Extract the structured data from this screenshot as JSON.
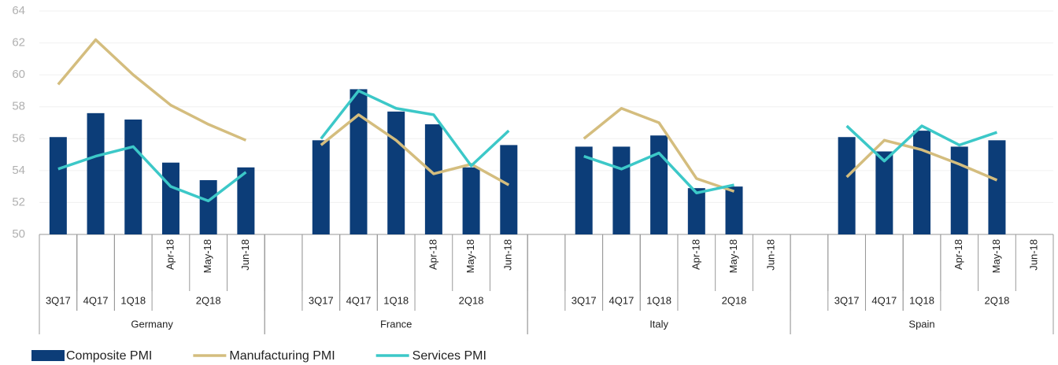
{
  "chart_data": {
    "type": "bar_line",
    "categories": [
      "3Q17",
      "4Q17",
      "1Q18",
      "Apr-18",
      "May-18",
      "Jun-18",
      null,
      "3Q17",
      "4Q17",
      "1Q18",
      "Apr-18",
      "May-18",
      "Jun-18",
      null,
      "3Q17",
      "4Q17",
      "1Q18",
      "Apr-18",
      "May-18",
      "Jun-18",
      null,
      "3Q17",
      "4Q17",
      "1Q18",
      "Apr-18",
      "May-18",
      "Jun-18"
    ],
    "subgroups": [
      "2Q18",
      "2Q18",
      "2Q18",
      "2Q18"
    ],
    "groups": [
      "Germany",
      "France",
      "Italy",
      "Spain"
    ],
    "series": [
      {
        "name": "Composite PMI",
        "kind": "bar",
        "color": "#0c3d78",
        "values": [
          56.1,
          57.6,
          57.2,
          54.5,
          53.4,
          54.2,
          null,
          55.9,
          59.1,
          57.7,
          56.9,
          54.2,
          55.6,
          null,
          55.5,
          55.5,
          56.2,
          52.9,
          53.0,
          null,
          null,
          56.1,
          55.2,
          56.5,
          55.5,
          55.9,
          null
        ]
      },
      {
        "name": "Manufacturing PMI",
        "kind": "line",
        "color": "#d4bd7e",
        "values": [
          59.4,
          62.2,
          60.0,
          58.1,
          56.9,
          55.9,
          null,
          55.6,
          57.5,
          55.9,
          53.8,
          54.4,
          53.1,
          null,
          56.0,
          57.9,
          57.0,
          53.5,
          52.7,
          null,
          null,
          53.6,
          55.9,
          55.3,
          54.4,
          53.4,
          null
        ]
      },
      {
        "name": "Services PMI",
        "kind": "line",
        "color": "#3cc8c8",
        "values": [
          54.1,
          54.9,
          55.5,
          53.0,
          52.1,
          53.9,
          null,
          56.0,
          59.0,
          57.9,
          57.5,
          54.3,
          56.5,
          null,
          54.9,
          54.1,
          55.1,
          52.6,
          53.1,
          null,
          null,
          56.8,
          54.6,
          56.8,
          55.6,
          56.4,
          null
        ]
      }
    ],
    "ylim": [
      50,
      64
    ],
    "yticks": [
      50,
      52,
      54,
      56,
      58,
      60,
      62,
      64
    ],
    "grid": true
  }
}
